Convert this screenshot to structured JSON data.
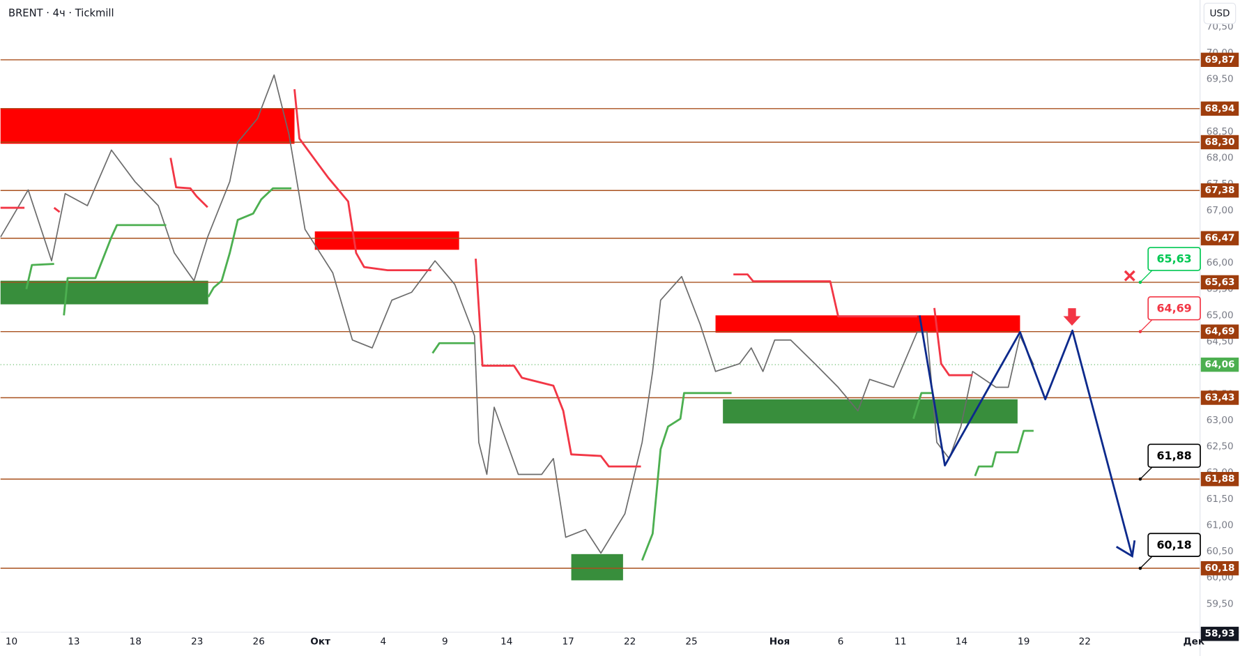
{
  "chart_data": {
    "type": "line",
    "title": "BRENT · 4ч · Tickmill",
    "currency": "USD",
    "xlim": [
      -0.18,
      19.28
    ],
    "ylim": [
      58.96,
      71.01
    ],
    "xticks": [
      {
        "value": 0,
        "label": "10"
      },
      {
        "value": 1.01,
        "label": "13"
      },
      {
        "value": 2.01,
        "label": "18"
      },
      {
        "value": 3.01,
        "label": "23"
      },
      {
        "value": 4.01,
        "label": "26"
      },
      {
        "value": 5.01,
        "label": "Окт"
      },
      {
        "value": 6.03,
        "label": "4"
      },
      {
        "value": 7.03,
        "label": "9"
      },
      {
        "value": 8.03,
        "label": "14"
      },
      {
        "value": 9.03,
        "label": "17"
      },
      {
        "value": 10.03,
        "label": "22"
      },
      {
        "value": 11.03,
        "label": "25"
      },
      {
        "value": 12.46,
        "label": "Ноя"
      },
      {
        "value": 13.45,
        "label": "6"
      },
      {
        "value": 14.42,
        "label": "11"
      },
      {
        "value": 15.41,
        "label": "14"
      },
      {
        "value": 16.42,
        "label": "19"
      },
      {
        "value": 17.41,
        "label": "22"
      },
      {
        "value": 19.18,
        "label": "Дек"
      }
    ],
    "yticks": [
      {
        "value": 59.5,
        "label": "59,50"
      },
      {
        "value": 60,
        "label": "60,00"
      },
      {
        "value": 60.5,
        "label": "60,50"
      },
      {
        "value": 61,
        "label": "61,00"
      },
      {
        "value": 61.5,
        "label": "61,50"
      },
      {
        "value": 62,
        "label": "62,00"
      },
      {
        "value": 62.5,
        "label": "62,50"
      },
      {
        "value": 63,
        "label": "63,00"
      },
      {
        "value": 63.5,
        "label": "63,50"
      },
      {
        "value": 64,
        "label": "64,00"
      },
      {
        "value": 64.5,
        "label": "64,50"
      },
      {
        "value": 65,
        "label": "65,00"
      },
      {
        "value": 65.5,
        "label": "65,50"
      },
      {
        "value": 66,
        "label": "66,00"
      },
      {
        "value": 66.5,
        "label": "66,50"
      },
      {
        "value": 67,
        "label": "67,00"
      },
      {
        "value": 67.5,
        "label": "67,50"
      },
      {
        "value": 68,
        "label": "68,00"
      },
      {
        "value": 68.5,
        "label": "68,50"
      },
      {
        "value": 69,
        "label": "69,00"
      },
      {
        "value": 69.5,
        "label": "69,50"
      },
      {
        "value": 70,
        "label": "70,00"
      },
      {
        "value": 70.5,
        "label": "70,50"
      }
    ],
    "level_color": "#a8501e",
    "levels": [
      {
        "value": 69.87,
        "label": "69,87"
      },
      {
        "value": 68.94,
        "label": "68,94"
      },
      {
        "value": 68.3,
        "label": "68,30"
      },
      {
        "value": 67.38,
        "label": "67,38"
      },
      {
        "value": 66.47,
        "label": "66,47"
      },
      {
        "value": 65.63,
        "label": "65,63"
      },
      {
        "value": 64.69,
        "label": "64,69"
      },
      {
        "value": 63.43,
        "label": "63,43"
      },
      {
        "value": 61.88,
        "label": "61,88"
      },
      {
        "value": 60.18,
        "label": "60,18"
      }
    ],
    "current_price": {
      "value": 64.06,
      "label": "64,06",
      "color": "#4caf50"
    },
    "axis_low": {
      "value": 58.93,
      "label": "58,93",
      "color": "#131722"
    },
    "zones": [
      {
        "x": [
          -0.18,
          4.59
        ],
        "y": [
          68.27,
          68.95
        ],
        "color": "#ff0000"
      },
      {
        "x": [
          -0.18,
          3.19
        ],
        "y": [
          65.21,
          65.66
        ],
        "color": "#388e3c"
      },
      {
        "x": [
          4.92,
          7.26
        ],
        "y": [
          66.25,
          66.6
        ],
        "color": "#ff0000"
      },
      {
        "x": [
          9.08,
          9.92
        ],
        "y": [
          59.95,
          60.45
        ],
        "color": "#388e3c"
      },
      {
        "x": [
          11.42,
          16.36
        ],
        "y": [
          64.67,
          65.0
        ],
        "color": "#ff0000"
      },
      {
        "x": [
          11.54,
          16.32
        ],
        "y": [
          62.94,
          63.4
        ],
        "color": "#388e3c"
      }
    ],
    "series": [
      {
        "color": "#6b6b6b",
        "x": [
          -0.18,
          0.27,
          0.65,
          0.87,
          1.23,
          1.62,
          2.0,
          2.38,
          2.64,
          2.96,
          3.18,
          3.54,
          3.67,
          3.99,
          4.26,
          4.5,
          4.76,
          5.21,
          5.53,
          5.85,
          6.17,
          6.49,
          6.87,
          7.19,
          7.51,
          7.58,
          7.71,
          7.83,
          8.22,
          8.6,
          8.79,
          8.99,
          9.31,
          9.56,
          9.95,
          10.23,
          10.4,
          10.53,
          10.87,
          11.17,
          11.42,
          11.81,
          12.0,
          12.19,
          12.38,
          12.64,
          13.03,
          13.41,
          13.73,
          13.92,
          14.31,
          14.69,
          14.85,
          15.01,
          15.21,
          15.4,
          15.59,
          15.97,
          16.17,
          16.36,
          16.58
        ],
        "values": [
          66.49,
          67.39,
          66.04,
          67.32,
          67.09,
          68.15,
          67.55,
          67.09,
          66.19,
          65.66,
          66.49,
          67.55,
          68.3,
          68.75,
          69.58,
          68.45,
          66.64,
          65.81,
          64.53,
          64.38,
          65.29,
          65.44,
          66.04,
          65.59,
          64.61,
          62.58,
          61.97,
          63.25,
          61.97,
          61.97,
          62.27,
          60.77,
          60.92,
          60.47,
          61.22,
          62.58,
          63.93,
          65.29,
          65.74,
          64.83,
          63.93,
          64.08,
          64.38,
          63.93,
          64.53,
          64.53,
          64.08,
          63.63,
          63.18,
          63.78,
          63.63,
          64.68,
          64.68,
          62.58,
          62.27,
          62.88,
          63.93,
          63.63,
          63.63,
          64.61,
          64.06
        ]
      },
      {
        "color": "#f23645",
        "x": [
          -0.18,
          0.21,
          null,
          0.69,
          0.78,
          null,
          2.58,
          2.67,
          2.9,
          3.0,
          3.18,
          null,
          4.59,
          4.67,
          4.95,
          5.14,
          5.46,
          5.59,
          5.72,
          6.1,
          6.81,
          null,
          7.53,
          7.64,
          8.15,
          8.28,
          8.79,
          8.95,
          9.08,
          9.56,
          9.69,
          10.21,
          null,
          11.71,
          11.94,
          12.03,
          13.28,
          13.41,
          14.69,
          null,
          14.97,
          15.08,
          15.21,
          15.59
        ],
        "values": [
          67.05,
          67.05,
          null,
          67.05,
          66.97,
          null,
          68.0,
          67.44,
          67.42,
          67.27,
          67.06,
          null,
          69.31,
          68.37,
          67.92,
          67.62,
          67.17,
          66.19,
          65.92,
          65.86,
          65.86,
          null,
          66.08,
          64.04,
          64.04,
          63.81,
          63.66,
          63.18,
          62.35,
          62.32,
          62.12,
          62.12,
          null,
          65.78,
          65.78,
          65.65,
          65.65,
          64.98,
          64.98,
          null,
          65.14,
          64.08,
          63.86,
          63.86
        ]
      },
      {
        "color": "#4caf50",
        "x": [
          0.24,
          0.33,
          0.69,
          null,
          0.85,
          0.91,
          1.36,
          1.62,
          1.71,
          2.51,
          null,
          3.19,
          3.28,
          3.41,
          3.54,
          3.67,
          3.92,
          4.05,
          4.24,
          4.54,
          null,
          6.83,
          6.94,
          7.51,
          null,
          10.23,
          10.4,
          10.53,
          10.65,
          10.85,
          10.91,
          11.68,
          null,
          14.63,
          14.76,
          14.95,
          null,
          15.63,
          15.69,
          15.91,
          15.97,
          16.32,
          16.42,
          16.58
        ],
        "values": [
          65.5,
          65.96,
          65.98,
          null,
          65.0,
          65.71,
          65.71,
          66.49,
          66.72,
          66.72,
          null,
          65.35,
          65.53,
          65.66,
          66.19,
          66.82,
          66.94,
          67.21,
          67.42,
          67.42,
          null,
          64.28,
          64.47,
          64.47,
          null,
          60.33,
          60.84,
          62.45,
          62.88,
          63.03,
          63.52,
          63.52,
          null,
          63.03,
          63.52,
          63.52,
          null,
          61.94,
          62.12,
          62.12,
          62.39,
          62.39,
          62.8,
          62.8
        ]
      },
      {
        "color": "#0d2a8c",
        "x": [
          14.73,
          15.14,
          16.36,
          16.77,
          17.21,
          18.18
        ],
        "values": [
          65.0,
          62.14,
          64.68,
          63.4,
          64.71,
          60.41
        ]
      }
    ],
    "callouts": [
      {
        "x": 18.31,
        "value": 65.63,
        "label": "65,63",
        "color": "#00c853"
      },
      {
        "x": 18.31,
        "value": 64.69,
        "label": "64,69",
        "color": "#f23645"
      },
      {
        "x": 18.31,
        "value": 61.88,
        "label": "61,88",
        "color": "#000000"
      },
      {
        "x": 18.31,
        "value": 60.18,
        "label": "60,18",
        "color": "#000000"
      }
    ]
  }
}
